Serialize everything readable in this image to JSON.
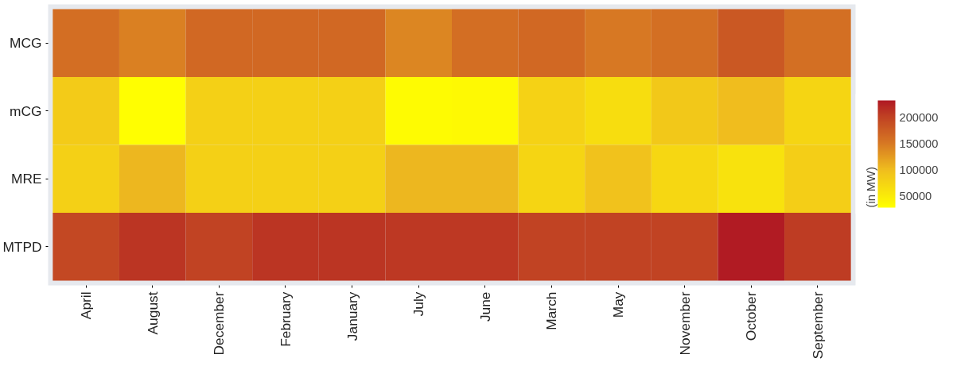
{
  "chart_data": {
    "type": "heatmap",
    "clabel": "(in MW)",
    "categories": [
      "April",
      "August",
      "December",
      "February",
      "January",
      "July",
      "June",
      "March",
      "May",
      "November",
      "October",
      "September"
    ],
    "y_categories": [
      "MCG",
      "mCG",
      "MRE",
      "MTPD"
    ],
    "cells": [
      [
        160000,
        145000,
        165000,
        165000,
        165000,
        140000,
        160000,
        165000,
        150000,
        158000,
        180000,
        158000
      ],
      [
        85000,
        30000,
        80000,
        80000,
        80000,
        32000,
        35000,
        78000,
        65000,
        88000,
        100000,
        75000
      ],
      [
        80000,
        105000,
        80000,
        80000,
        80000,
        105000,
        105000,
        75000,
        95000,
        72000,
        60000,
        82000
      ],
      [
        195000,
        210000,
        200000,
        210000,
        210000,
        208000,
        208000,
        200000,
        200000,
        200000,
        230000,
        205000
      ]
    ],
    "clim": [
      28000,
      232000
    ],
    "cticks": [
      50000,
      100000,
      150000,
      200000
    ]
  }
}
